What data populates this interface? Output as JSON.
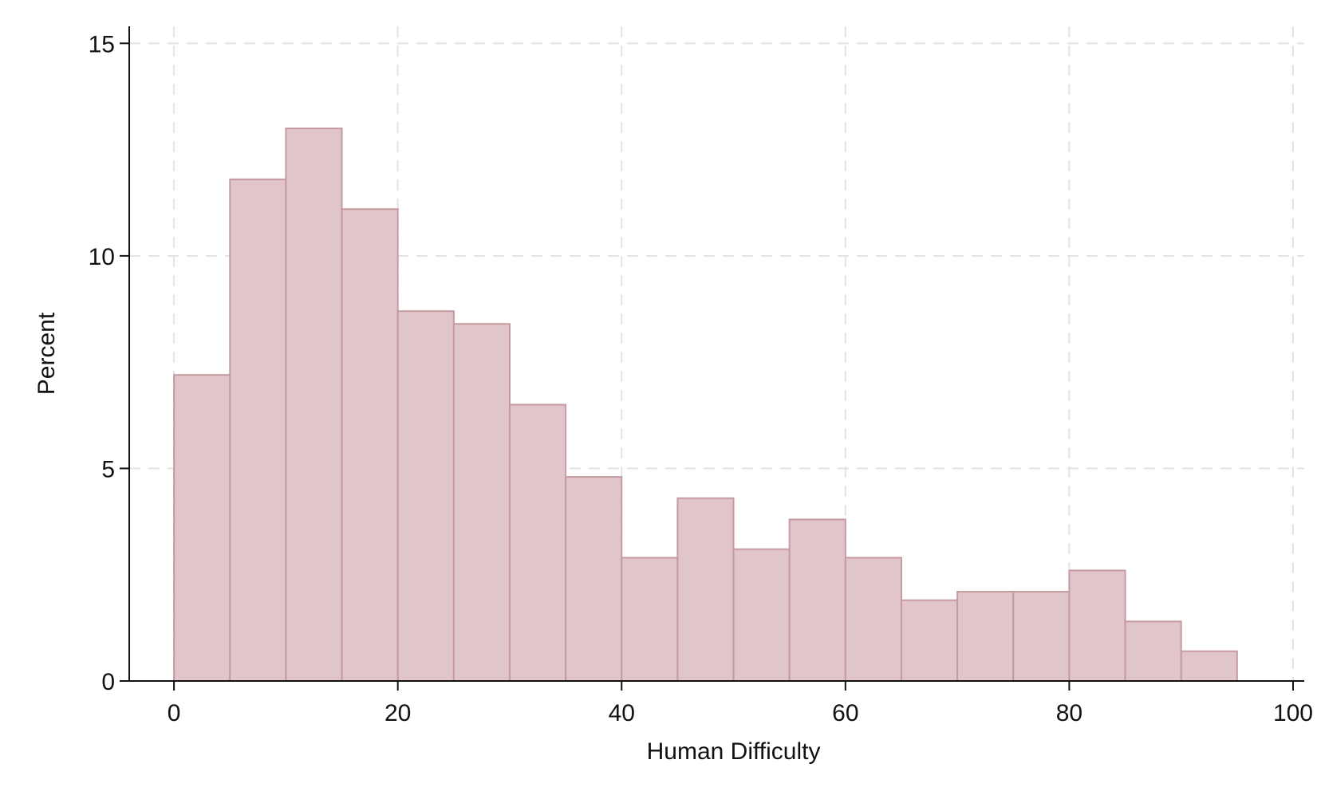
{
  "chart_data": {
    "type": "bar",
    "subtype": "histogram",
    "xlabel": "Human Difficulty",
    "ylabel": "Percent",
    "xlim": [
      -4,
      101
    ],
    "ylim": [
      0,
      15.4
    ],
    "xticks": [
      0,
      20,
      40,
      60,
      80,
      100
    ],
    "yticks": [
      0,
      5,
      10,
      15
    ],
    "grid": true,
    "bar_color": "#e0c5ca",
    "bar_edge_color": "#c79aa2",
    "bin_width": 5,
    "bins": [
      {
        "start": 0,
        "end": 5,
        "value": 7.2
      },
      {
        "start": 5,
        "end": 10,
        "value": 11.8
      },
      {
        "start": 10,
        "end": 15,
        "value": 13.0
      },
      {
        "start": 15,
        "end": 20,
        "value": 11.1
      },
      {
        "start": 20,
        "end": 25,
        "value": 8.7
      },
      {
        "start": 25,
        "end": 30,
        "value": 8.4
      },
      {
        "start": 30,
        "end": 35,
        "value": 6.5
      },
      {
        "start": 35,
        "end": 40,
        "value": 4.8
      },
      {
        "start": 40,
        "end": 45,
        "value": 2.9
      },
      {
        "start": 45,
        "end": 50,
        "value": 4.3
      },
      {
        "start": 50,
        "end": 55,
        "value": 3.1
      },
      {
        "start": 55,
        "end": 60,
        "value": 3.8
      },
      {
        "start": 60,
        "end": 65,
        "value": 2.9
      },
      {
        "start": 65,
        "end": 70,
        "value": 1.9
      },
      {
        "start": 70,
        "end": 75,
        "value": 2.1
      },
      {
        "start": 75,
        "end": 80,
        "value": 2.1
      },
      {
        "start": 80,
        "end": 85,
        "value": 2.6
      },
      {
        "start": 85,
        "end": 90,
        "value": 1.4
      },
      {
        "start": 90,
        "end": 95,
        "value": 0.7
      }
    ]
  }
}
